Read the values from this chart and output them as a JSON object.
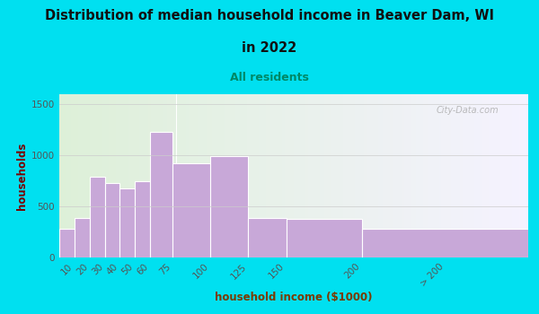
{
  "title_line1": "Distribution of median household income in Beaver Dam, WI",
  "title_line2": "in 2022",
  "subtitle": "All residents",
  "xlabel": "household income ($1000)",
  "ylabel": "households",
  "title_color": "#111111",
  "subtitle_color": "#008866",
  "ylabel_color": "#7a0000",
  "xlabel_color": "#7a3a00",
  "bar_color": "#c8a8d8",
  "bar_edge_color": "#ffffff",
  "background_outer": "#00e0f0",
  "background_inner_left": "#ddf0d8",
  "background_inner_right": "#f5f0ff",
  "categories": [
    "10",
    "20",
    "30",
    "40",
    "50",
    "60",
    "75",
    "100",
    "125",
    "150",
    "200",
    "> 200"
  ],
  "values": [
    280,
    390,
    790,
    730,
    680,
    750,
    1230,
    920,
    990,
    390,
    380,
    280
  ],
  "bar_lefts": [
    0,
    10,
    20,
    30,
    40,
    50,
    60,
    75,
    100,
    125,
    150,
    200
  ],
  "bar_rights": [
    10,
    20,
    30,
    40,
    50,
    60,
    75,
    100,
    125,
    150,
    200,
    310
  ],
  "tick_positions": [
    10,
    20,
    30,
    40,
    50,
    60,
    75,
    100,
    125,
    150,
    200,
    255
  ],
  "ylim": [
    0,
    1600
  ],
  "yticks": [
    0,
    500,
    1000,
    1500
  ],
  "xlim": [
    0,
    310
  ],
  "watermark": "City-Data.com"
}
